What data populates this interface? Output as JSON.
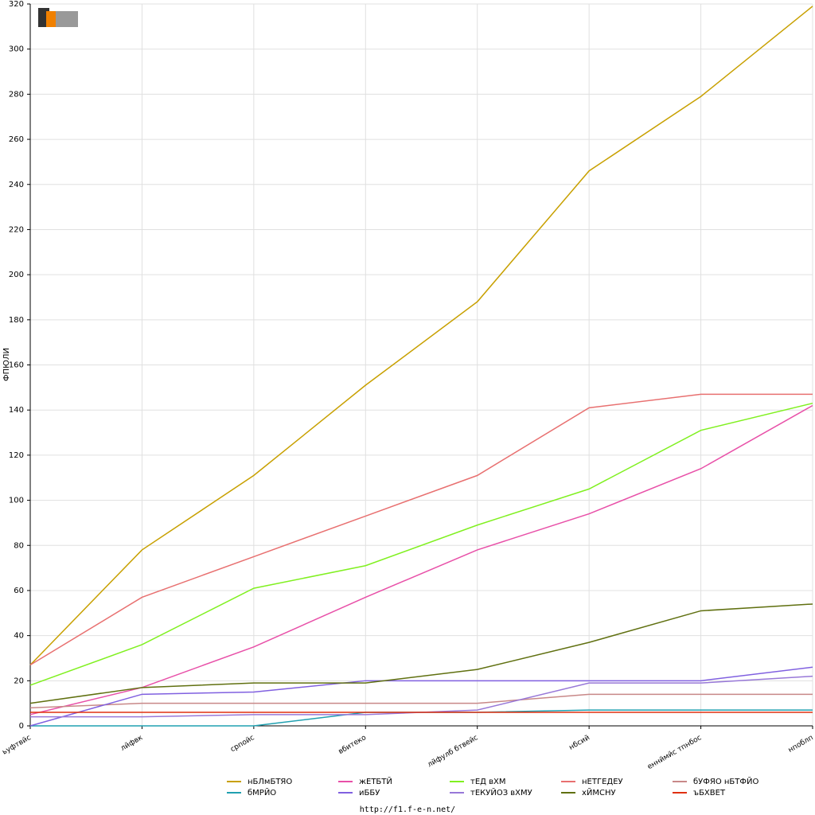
{
  "chart_data": {
    "type": "line",
    "y_label": "ФПЮЛИ",
    "footer": "http://f1.f-e-n.net/",
    "categories": [
      "ьуфтвйс",
      "лйфвк",
      "српойс",
      "вбитеко",
      "лйфулб бтвейс",
      "нбсий",
      "еннймйс тпнбос",
      "нпоблп"
    ],
    "ylim": [
      0,
      320
    ],
    "yticks": [
      0,
      20,
      40,
      60,
      80,
      100,
      120,
      140,
      160,
      180,
      200,
      220,
      240,
      260,
      280,
      300,
      320
    ],
    "grid": true,
    "series": [
      {
        "name": "нБЛмБТЯО",
        "color": "#c8a000",
        "values": [
          27,
          78,
          111,
          151,
          188,
          246,
          279,
          319
        ]
      },
      {
        "name": "жЕТБТЙ",
        "color": "#e850a8",
        "values": [
          5,
          17,
          35,
          57,
          78,
          94,
          114,
          142
        ]
      },
      {
        "name": "тЕД вХМ",
        "color": "#80f020",
        "values": [
          18,
          36,
          61,
          71,
          89,
          105,
          131,
          143
        ]
      },
      {
        "name": "нЕТГЕДЕУ",
        "color": "#e87070",
        "values": [
          27,
          57,
          75,
          93,
          111,
          141,
          147,
          147
        ]
      },
      {
        "name": "бУФЯО нБТФЙО",
        "color": "#c88888",
        "values": [
          8,
          10,
          10,
          10,
          10,
          14,
          14,
          14
        ]
      },
      {
        "name": "бМРЙО",
        "color": "#20a0b0",
        "values": [
          0,
          0,
          0,
          6,
          6,
          7,
          7,
          7
        ]
      },
      {
        "name": "иББУ",
        "color": "#8060e0",
        "values": [
          0,
          14,
          15,
          20,
          20,
          20,
          20,
          26
        ]
      },
      {
        "name": "тЕКУЙОЗ вХМУ",
        "color": "#9878d8",
        "values": [
          4,
          4,
          5,
          5,
          7,
          19,
          19,
          22
        ]
      },
      {
        "name": "хЙМСНУ",
        "color": "#607010",
        "values": [
          10,
          17,
          19,
          19,
          25,
          37,
          51,
          54
        ]
      },
      {
        "name": "ъБХВЕТ",
        "color": "#e03010",
        "values": [
          6,
          6,
          6,
          6,
          6,
          6,
          6,
          6
        ]
      }
    ]
  }
}
